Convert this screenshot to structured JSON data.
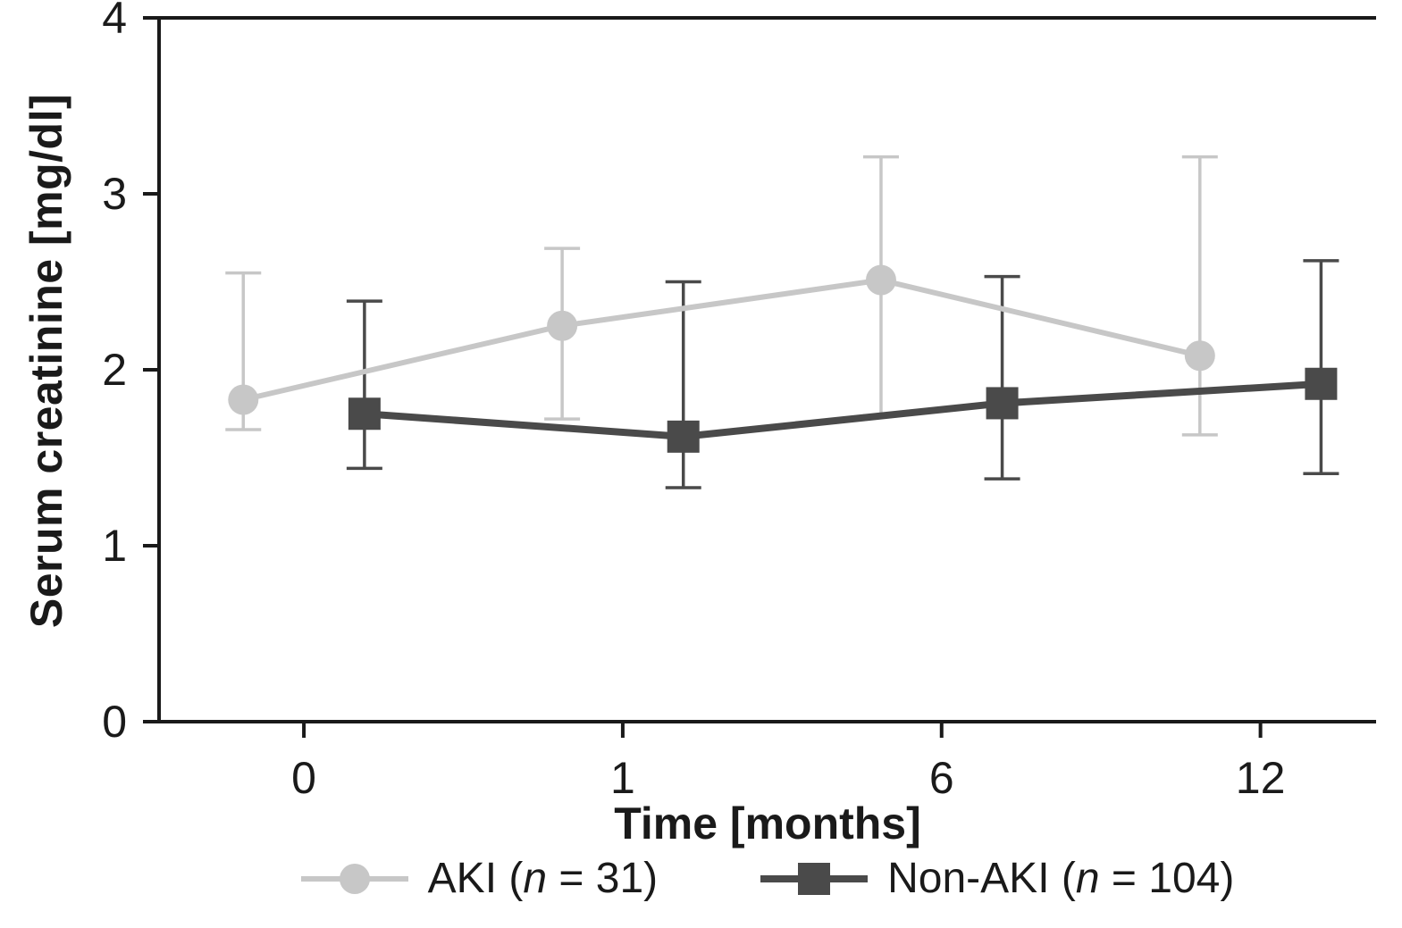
{
  "chart_data": {
    "type": "line",
    "x_categories": [
      "0",
      "1",
      "6",
      "12"
    ],
    "xlabel": "Time [months]",
    "ylabel": "Serum creatinine [mg/dl]",
    "ylim": [
      0,
      4
    ],
    "yticks": [
      "0",
      "1",
      "2",
      "3",
      "4"
    ],
    "axis_color": "#1a1a1a",
    "grid": false,
    "legend_position": "bottom",
    "series": [
      {
        "name": "AKI",
        "n": "31",
        "marker": "circle",
        "color": "#c7c7c7",
        "x_offset": -0.19,
        "line_width": 6,
        "values": [
          1.83,
          2.25,
          2.51,
          2.08
        ],
        "err_low": [
          1.66,
          1.72,
          1.74,
          1.63
        ],
        "err_high": [
          2.55,
          2.69,
          3.21,
          3.21
        ]
      },
      {
        "name": "Non-AKI",
        "n": "104",
        "marker": "square",
        "color": "#4a4a4a",
        "x_offset": 0.19,
        "line_width": 8,
        "values": [
          1.75,
          1.62,
          1.81,
          1.92
        ],
        "err_low": [
          1.44,
          1.33,
          1.38,
          1.41
        ],
        "err_high": [
          2.39,
          2.5,
          2.53,
          2.62
        ]
      }
    ],
    "legend": {
      "items": [
        {
          "pre": "AKI (",
          "n_var": "n",
          "post": " = 31)"
        },
        {
          "pre": "Non-AKI (",
          "n_var": "n",
          "post": " = 104)"
        }
      ]
    }
  }
}
